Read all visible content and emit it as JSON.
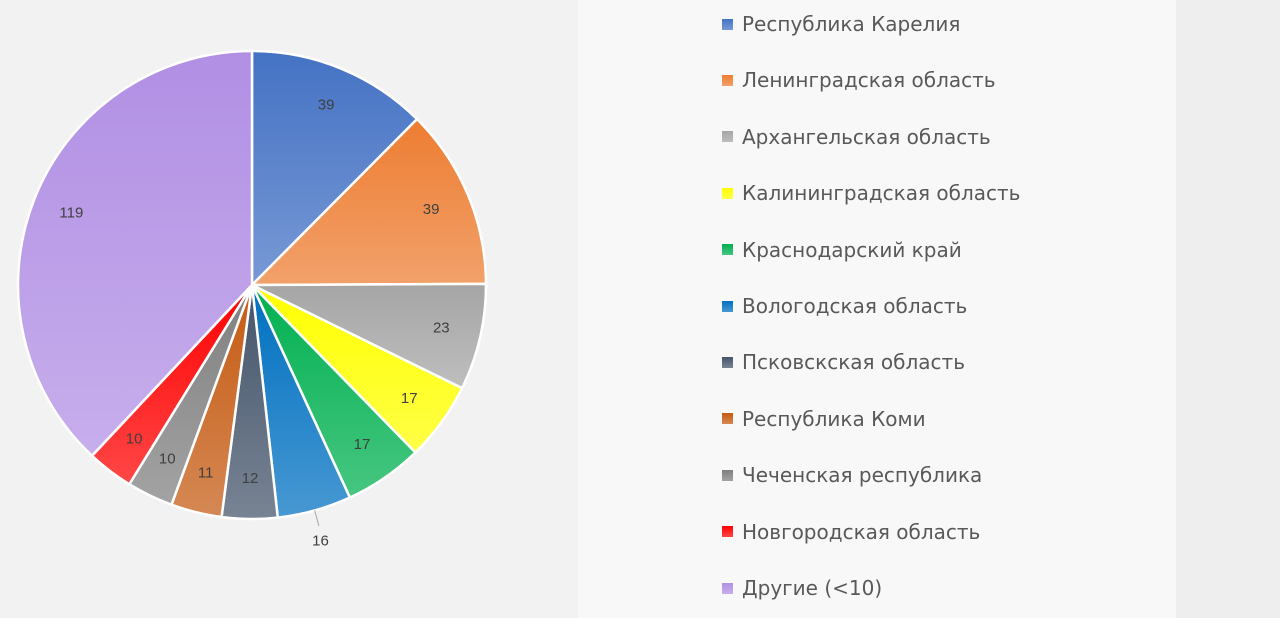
{
  "chart_data": {
    "type": "pie",
    "categories": [
      "Республика Карелия",
      "Ленинградская область",
      "Архангельская область",
      "Калининградская область",
      "Краснодарский край",
      "Вологодская область",
      "Псковскская область",
      "Республика Коми",
      "Чеченская республика",
      "Новгородская область",
      "Другие (<10)"
    ],
    "values": [
      39,
      39,
      23,
      17,
      17,
      16,
      12,
      11,
      10,
      10,
      119
    ],
    "data_labels": [
      "39",
      "39",
      "23",
      "17",
      "17",
      "16",
      "12",
      "11",
      "10",
      "10",
      "119"
    ],
    "colors": [
      "#4472c4",
      "#ed7d31",
      "#a5a5a5",
      "#ffff00",
      "#00b050",
      "#0070c0",
      "#44546a",
      "#c55a11",
      "#7f7f7f",
      "#ff0000",
      "#b18fe4"
    ],
    "legend_position": "right",
    "start_angle": "12 o'clock",
    "direction": "clockwise"
  }
}
